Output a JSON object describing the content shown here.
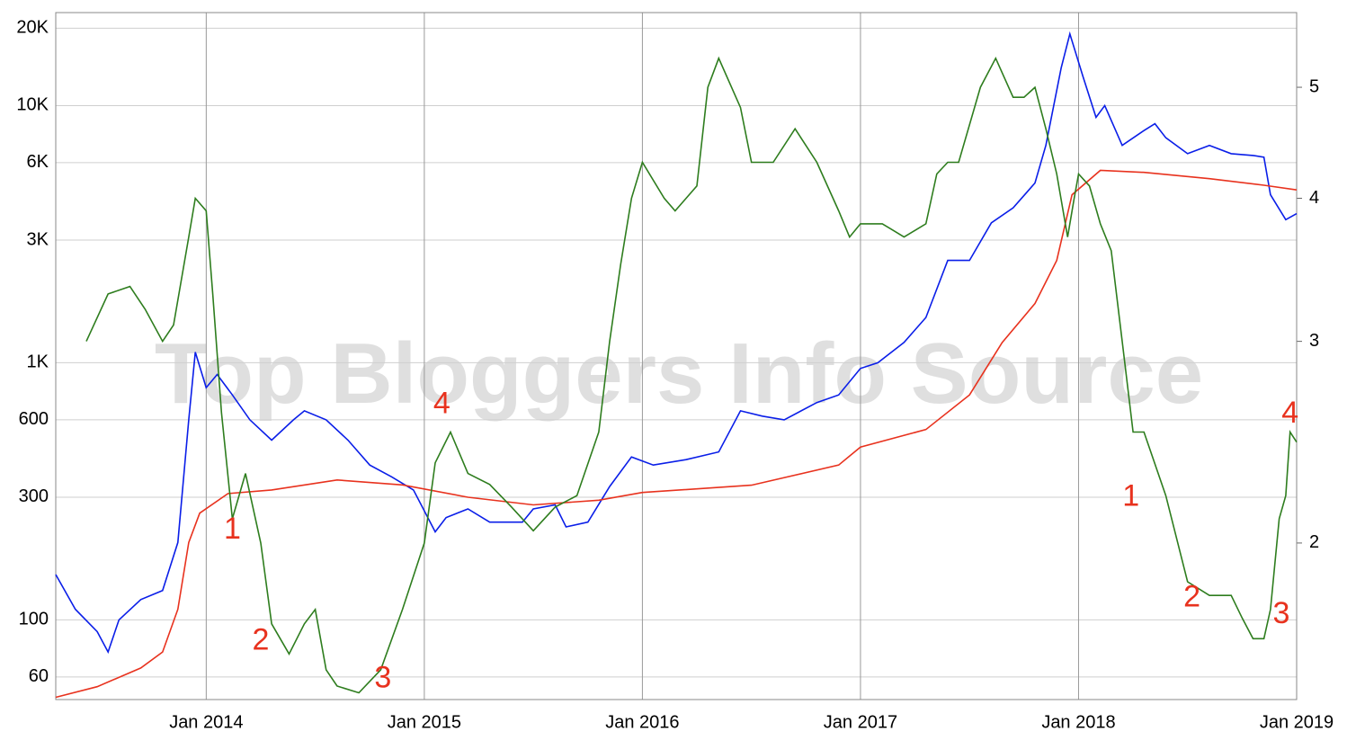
{
  "chart_data": {
    "type": "line",
    "watermark": "Top Bloggers Info Source",
    "log_scale": true,
    "grid": true,
    "xlim": [
      2013.31,
      2019.0
    ],
    "xticks": [
      {
        "value": 2014,
        "label": "Jan 2014"
      },
      {
        "value": 2015,
        "label": "Jan 2015"
      },
      {
        "value": 2016,
        "label": "Jan 2016"
      },
      {
        "value": 2017,
        "label": "Jan 2017"
      },
      {
        "value": 2018,
        "label": "Jan 2018"
      },
      {
        "value": 2019,
        "label": "Jan 2019"
      }
    ],
    "ylim": [
      49,
      23000
    ],
    "yticks": [
      60,
      100,
      300,
      600,
      {
        "value": 1000,
        "label": "1K"
      },
      {
        "value": 3000,
        "label": "3K"
      },
      {
        "value": 6000,
        "label": "6K"
      },
      {
        "value": 10000,
        "label": "10K"
      },
      {
        "value": 20000,
        "label": "20K"
      }
    ],
    "y2lim": [
      1.46,
      5.81
    ],
    "y2ticks": [
      2,
      3,
      4,
      5
    ],
    "series": [
      {
        "color": "#0a1ee8",
        "x": [
          2013.31,
          2013.4,
          2013.5,
          2013.55,
          2013.6,
          2013.7,
          2013.8,
          2013.87,
          2013.92,
          2013.95,
          2014.0,
          2014.05,
          2014.12,
          2014.2,
          2014.3,
          2014.4,
          2014.45,
          2014.55,
          2014.65,
          2014.75,
          2014.85,
          2014.95,
          2015.05,
          2015.1,
          2015.2,
          2015.3,
          2015.45,
          2015.5,
          2015.6,
          2015.65,
          2015.75,
          2015.85,
          2015.95,
          2016.05,
          2016.2,
          2016.35,
          2016.45,
          2016.55,
          2016.65,
          2016.8,
          2016.9,
          2017.0,
          2017.08,
          2017.2,
          2017.3,
          2017.4,
          2017.5,
          2017.6,
          2017.7,
          2017.8,
          2017.85,
          2017.92,
          2017.96,
          2018.02,
          2018.08,
          2018.12,
          2018.2,
          2018.3,
          2018.35,
          2018.4,
          2018.5,
          2018.6,
          2018.7,
          2018.8,
          2018.85,
          2018.88,
          2018.95,
          2019.0
        ],
        "values": [
          150,
          110,
          90,
          75,
          100,
          120,
          130,
          200,
          600,
          1100,
          800,
          900,
          750,
          600,
          500,
          600,
          650,
          600,
          500,
          400,
          360,
          320,
          220,
          250,
          270,
          240,
          240,
          270,
          280,
          230,
          240,
          330,
          430,
          400,
          420,
          450,
          650,
          620,
          600,
          700,
          750,
          950,
          1000,
          1200,
          1500,
          2500,
          2500,
          3500,
          4000,
          5000,
          7000,
          14000,
          19000,
          13000,
          9000,
          10000,
          7000,
          8000,
          8500,
          7500,
          6500,
          7000,
          6500,
          6400,
          6300,
          4500,
          3600,
          3800
        ]
      },
      {
        "color": "#e8321e",
        "x": [
          2013.31,
          2013.5,
          2013.7,
          2013.8,
          2013.87,
          2013.92,
          2013.97,
          2014.1,
          2014.3,
          2014.6,
          2014.9,
          2015.2,
          2015.5,
          2015.8,
          2016.0,
          2016.5,
          2016.9,
          2017.0,
          2017.3,
          2017.5,
          2017.65,
          2017.8,
          2017.9,
          2017.97,
          2018.1,
          2018.3,
          2018.6,
          2018.85,
          2019.0
        ],
        "values": [
          50,
          55,
          65,
          75,
          110,
          200,
          260,
          310,
          320,
          350,
          335,
          300,
          280,
          292,
          313,
          334,
          400,
          470,
          550,
          750,
          1200,
          1700,
          2500,
          4500,
          5600,
          5500,
          5200,
          4900,
          4700
        ]
      },
      {
        "color": "#2e7d1e",
        "axis": "y2",
        "x": [
          2013.45,
          2013.55,
          2013.65,
          2013.72,
          2013.8,
          2013.85,
          2013.92,
          2013.95,
          2014.0,
          2014.03,
          2014.07,
          2014.12,
          2014.18,
          2014.25,
          2014.3,
          2014.38,
          2014.45,
          2014.5,
          2014.55,
          2014.6,
          2014.7,
          2014.8,
          2014.9,
          2015.0,
          2015.05,
          2015.12,
          2015.2,
          2015.3,
          2015.4,
          2015.5,
          2015.6,
          2015.7,
          2015.8,
          2015.85,
          2015.9,
          2015.95,
          2016.0,
          2016.1,
          2016.15,
          2016.25,
          2016.3,
          2016.35,
          2016.45,
          2016.5,
          2016.6,
          2016.7,
          2016.8,
          2016.9,
          2016.95,
          2017.0,
          2017.1,
          2017.15,
          2017.2,
          2017.3,
          2017.35,
          2017.4,
          2017.45,
          2017.55,
          2017.62,
          2017.7,
          2017.75,
          2017.8,
          2017.85,
          2017.9,
          2017.95,
          2017.98,
          2018.0,
          2018.05,
          2018.1,
          2018.15,
          2018.2,
          2018.25,
          2018.3,
          2018.4,
          2018.5,
          2018.6,
          2018.7,
          2018.75,
          2018.8,
          2018.85,
          2018.88,
          2018.92,
          2018.95,
          2018.97,
          2019.0
        ],
        "values": [
          3.0,
          3.3,
          3.35,
          3.2,
          3.0,
          3.1,
          3.7,
          4.0,
          3.9,
          3.3,
          2.6,
          2.1,
          2.3,
          2.0,
          1.7,
          1.6,
          1.7,
          1.75,
          1.55,
          1.5,
          1.48,
          1.55,
          1.75,
          2.0,
          2.35,
          2.5,
          2.3,
          2.25,
          2.15,
          2.05,
          2.15,
          2.2,
          2.5,
          3.0,
          3.5,
          4.0,
          4.3,
          4.0,
          3.9,
          4.1,
          5.0,
          5.3,
          4.8,
          4.3,
          4.3,
          4.6,
          4.3,
          3.9,
          3.7,
          3.8,
          3.8,
          3.75,
          3.7,
          3.8,
          4.2,
          4.3,
          4.3,
          5.0,
          5.3,
          4.9,
          4.9,
          5.0,
          4.6,
          4.2,
          3.7,
          4.0,
          4.2,
          4.1,
          3.8,
          3.6,
          3.0,
          2.5,
          2.5,
          2.2,
          1.85,
          1.8,
          1.8,
          1.72,
          1.65,
          1.65,
          1.75,
          2.1,
          2.2,
          2.5,
          2.45
        ]
      }
    ],
    "annotations": [
      {
        "text": "1",
        "x": 2014.12,
        "y2": 2.05
      },
      {
        "text": "2",
        "x": 2014.25,
        "y2": 1.64
      },
      {
        "text": "3",
        "x": 2014.81,
        "y2": 1.52
      },
      {
        "text": "4",
        "x": 2015.08,
        "y2": 2.64
      },
      {
        "text": "1",
        "x": 2018.24,
        "y2": 2.19
      },
      {
        "text": "2",
        "x": 2018.52,
        "y2": 1.79
      },
      {
        "text": "3",
        "x": 2018.93,
        "y2": 1.73
      },
      {
        "text": "4",
        "x": 2018.97,
        "y2": 2.59
      }
    ]
  }
}
